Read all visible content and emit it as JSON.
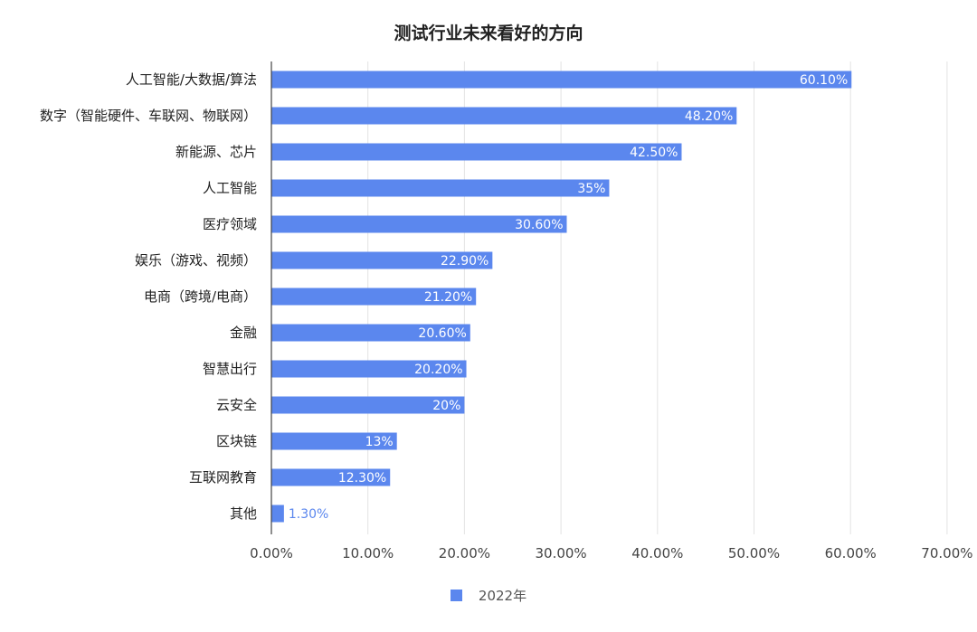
{
  "chart_data": {
    "type": "bar",
    "orientation": "horizontal",
    "title": "测试行业未来看好的方向",
    "categories": [
      "人工智能/大数据/算法",
      "数字（智能硬件、车联网、物联网）",
      "新能源、芯片",
      "人工智能",
      "医疗领域",
      "娱乐（游戏、视频）",
      "电商（跨境/电商）",
      "金融",
      "智慧出行",
      "云安全",
      "区块链",
      "互联网教育",
      "其他"
    ],
    "series": [
      {
        "name": "2022年",
        "values": [
          60.1,
          48.2,
          42.5,
          35,
          30.6,
          22.9,
          21.2,
          20.6,
          20.2,
          20,
          13,
          12.3,
          1.3
        ],
        "labels": [
          "60.10%",
          "48.20%",
          "42.50%",
          "35%",
          "30.60%",
          "22.90%",
          "21.20%",
          "20.60%",
          "20.20%",
          "20%",
          "13%",
          "12.30%",
          "1.30%"
        ]
      }
    ],
    "x_ticks": [
      "0.00%",
      "10.00%",
      "20.00%",
      "30.00%",
      "40.00%",
      "50.00%",
      "60.00%",
      "70.00%"
    ],
    "xlim": [
      0,
      70
    ],
    "xlabel": "",
    "ylabel": "",
    "grid": true,
    "legend_position": "bottom",
    "bar_color": "#5b87ee"
  }
}
